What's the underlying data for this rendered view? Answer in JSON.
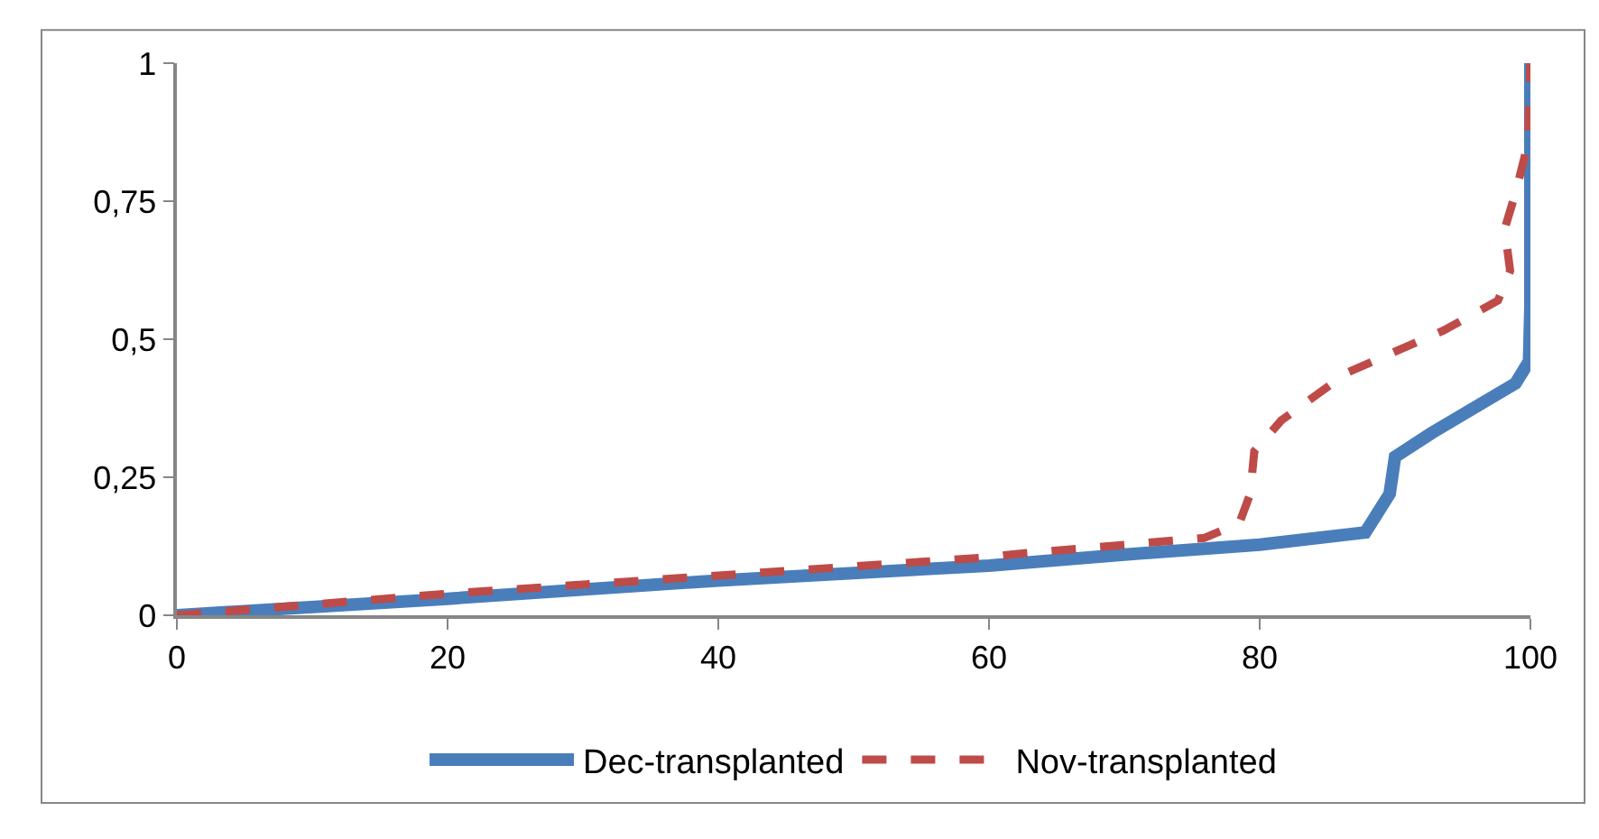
{
  "chart_data": {
    "type": "line",
    "xlim": [
      0,
      100
    ],
    "xticks": [
      0,
      20,
      40,
      60,
      80,
      100
    ],
    "ylim": [
      0,
      1
    ],
    "yticks": [
      0,
      {
        "value": 0.25,
        "label": "0,25"
      },
      {
        "value": 0.5,
        "label": "0,5"
      },
      {
        "value": 0.75,
        "label": "0,75"
      },
      1
    ],
    "grid": false,
    "legend": "bottom",
    "marker": "none",
    "series": [
      {
        "name": "Dec-transplanted",
        "color": "#4a7ebb",
        "line_style": "solid",
        "x": [
          0,
          20,
          40,
          60,
          70,
          80,
          87.8,
          89.6,
          90,
          92.7,
          98.9,
          99.9,
          100,
          100
        ],
        "values": [
          0,
          0.03,
          0.063,
          0.09,
          0.11,
          0.128,
          0.15,
          0.22,
          0.287,
          0.33,
          0.42,
          0.46,
          0.56,
          1
        ]
      },
      {
        "name": "Nov-transplanted",
        "color": "#be4b48",
        "line_style": "dashed",
        "x": [
          0,
          20,
          40,
          60,
          61.6,
          75.9,
          78.5,
          79.3,
          79.6,
          81.6,
          86.5,
          93.6,
          97.6,
          98.5,
          98.1,
          98.9,
          99.8,
          100
        ],
        "values": [
          0,
          0.039,
          0.072,
          0.105,
          0.11,
          0.14,
          0.167,
          0.22,
          0.297,
          0.353,
          0.44,
          0.516,
          0.57,
          0.624,
          0.7,
          0.765,
          0.853,
          1
        ]
      }
    ]
  }
}
